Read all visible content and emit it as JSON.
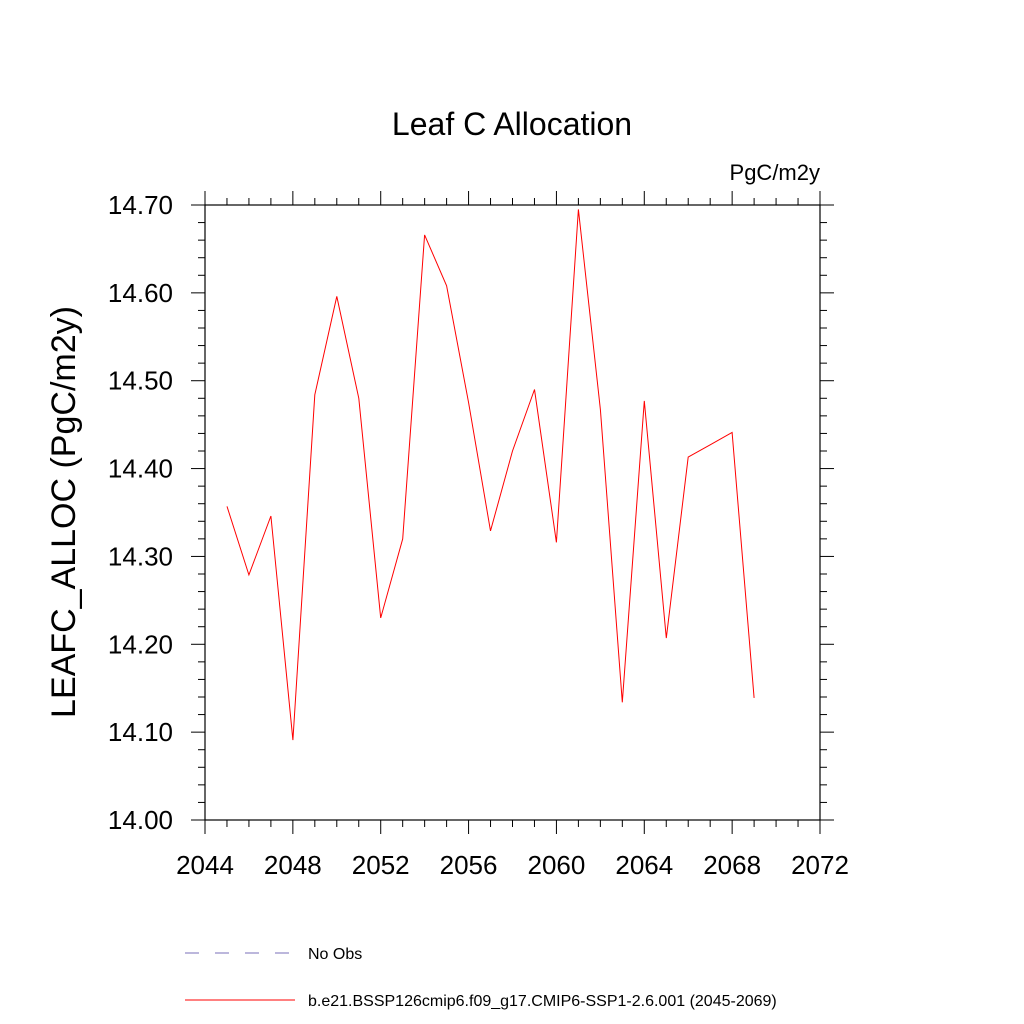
{
  "chart_data": {
    "type": "line",
    "title": "Leaf C Allocation",
    "units_label": "PgC/m2y",
    "xlabel": "",
    "ylabel": "LEAFC_ALLOC  (PgC/m2y)",
    "xlim": [
      2044,
      2072
    ],
    "ylim": [
      14.0,
      14.7
    ],
    "x_ticks": [
      2044,
      2048,
      2052,
      2056,
      2060,
      2064,
      2068,
      2072
    ],
    "x_tick_labels": [
      "2044",
      "2048",
      "2052",
      "2056",
      "2060",
      "2064",
      "2068",
      "2072"
    ],
    "y_ticks": [
      14.0,
      14.1,
      14.2,
      14.3,
      14.4,
      14.5,
      14.6,
      14.7
    ],
    "y_tick_labels": [
      "14.00",
      "14.10",
      "14.20",
      "14.30",
      "14.40",
      "14.50",
      "14.60",
      "14.70"
    ],
    "grid": false,
    "series": [
      {
        "name": "b.e21.BSSP126cmip6.f09_g17.CMIP6-SSP1-2.6.001 (2045-2069)",
        "color": "#ff0000",
        "x": [
          2045,
          2046,
          2047,
          2048,
          2049,
          2050,
          2051,
          2052,
          2053,
          2054,
          2055,
          2056,
          2057,
          2058,
          2059,
          2060,
          2061,
          2062,
          2063,
          2064,
          2065,
          2066,
          2067,
          2068,
          2069
        ],
        "values": [
          14.357,
          14.279,
          14.346,
          14.091,
          14.484,
          14.596,
          14.48,
          14.23,
          14.32,
          14.666,
          14.608,
          14.475,
          14.329,
          14.42,
          14.49,
          14.316,
          14.695,
          14.467,
          14.134,
          14.477,
          14.207,
          14.413,
          14.427,
          14.441,
          14.139
        ]
      }
    ],
    "legend": [
      {
        "label": "No Obs",
        "color": "#7a6fb8",
        "style": "dashed"
      },
      {
        "label": "b.e21.BSSP126cmip6.f09_g17.CMIP6-SSP1-2.6.001 (2045-2069)",
        "color": "#ff0000",
        "style": "solid"
      }
    ],
    "legend_position": "bottom"
  }
}
